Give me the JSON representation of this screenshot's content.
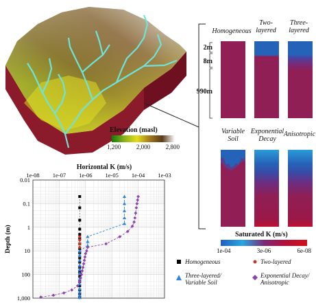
{
  "terrain": {
    "colorbar": {
      "title": "Elevation (masl)",
      "ticks": [
        "1,200",
        "2,000",
        "2,800"
      ],
      "colors": [
        "#0c7d0c",
        "#8ab21a",
        "#e4dc1c",
        "#a37a1c",
        "#5c3a1a",
        "#ffffff"
      ]
    },
    "river_color": "#6fe3d9",
    "wall_color": "#8b1a2a"
  },
  "columns": {
    "top_headers": [
      "Homogeneous",
      "Two-\nlayered",
      "Three-\nlayered"
    ],
    "bottom_headers": [
      "Variable\nSoil",
      "Exponential\nDecay",
      "Anisotropic"
    ],
    "layer_labels": [
      "2m",
      "8m",
      "990m"
    ],
    "colorbar": {
      "title": "Saturated K (m/s)",
      "ticks": [
        "1e-04",
        "3e-06",
        "6e-08"
      ],
      "colors": [
        "#1f5fbf",
        "#2aa6e0",
        "#7a2a78",
        "#b3103a",
        "#d4101a"
      ]
    }
  },
  "chart_data": {
    "type": "scatter",
    "title": "Horizontal K (m/s)",
    "xlabel": "",
    "ylabel": "Depth (m)",
    "x_scale": "log",
    "y_scale": "log",
    "y_inverted": true,
    "xlim": [
      1e-08,
      0.001
    ],
    "ylim": [
      0.01,
      1000
    ],
    "x_tick_labels": [
      "1e-08",
      "1e-07",
      "1e-06",
      "1e-05",
      "1e-04",
      "1e-03"
    ],
    "y_tick_labels": [
      "0.01",
      "0.1",
      "1",
      "10",
      "100",
      "1,000"
    ],
    "grid": true,
    "legend_placement": "right",
    "series": [
      {
        "name": "Homogeneous",
        "marker": "square",
        "color": "#000000",
        "x": [
          6e-07,
          6e-07,
          6e-07,
          6e-07,
          6e-07,
          6e-07,
          6e-07,
          6e-07,
          6e-07,
          6e-07,
          6e-07,
          6e-07,
          6e-07,
          6e-07,
          6e-07,
          6e-07,
          6e-07,
          6e-07,
          6e-07
        ],
        "y": [
          0.05,
          0.15,
          0.5,
          1.2,
          2,
          3,
          5,
          8,
          12,
          20,
          30,
          50,
          80,
          120,
          200,
          300,
          450,
          650,
          900
        ]
      },
      {
        "name": "Two-layered",
        "marker": "circle",
        "color": "#c0392b",
        "x": [
          6e-07,
          6e-07,
          6e-07,
          6e-07
        ],
        "y": [
          2.5,
          3.5,
          5,
          7
        ]
      },
      {
        "name": "Three-layered/\nVariable Soil",
        "marker": "triangle",
        "color": "#2e86de",
        "x": [
          3e-05,
          3e-05,
          3e-05,
          3e-05,
          3e-05,
          1.2e-06,
          1.2e-06,
          1.2e-06,
          6e-07,
          6e-07,
          6e-07,
          6e-07,
          6e-07,
          6e-07,
          6e-07,
          6e-07,
          6e-07,
          6e-07,
          6e-07,
          6e-07
        ],
        "y": [
          0.05,
          0.1,
          0.2,
          0.4,
          0.7,
          2.5,
          4,
          6,
          10,
          15,
          25,
          40,
          60,
          90,
          150,
          250,
          400,
          550,
          750,
          950
        ]
      },
      {
        "name": "Exponential Decay/\nAnisotropic",
        "marker": "diamond",
        "color": "#8e44ad",
        "x": [
          0.0001,
          9.5e-05,
          9e-05,
          8.5e-05,
          8e-05,
          7.5e-05,
          7e-05,
          6e-05,
          4e-05,
          2e-05,
          6e-06,
          1.2e-06,
          1.1e-06,
          1e-06,
          9.5e-07,
          9e-07,
          8.5e-07,
          8e-07,
          7.5e-07,
          7e-07,
          6.5e-07,
          6e-07,
          5e-07,
          3e-07,
          1.5e-07,
          6e-08,
          2e-08
        ],
        "y": [
          0.05,
          0.07,
          0.1,
          0.15,
          0.25,
          0.4,
          0.6,
          0.9,
          1.5,
          2.5,
          5,
          7,
          10,
          13,
          18,
          25,
          35,
          50,
          70,
          100,
          140,
          200,
          300,
          450,
          600,
          750,
          900
        ]
      }
    ]
  }
}
